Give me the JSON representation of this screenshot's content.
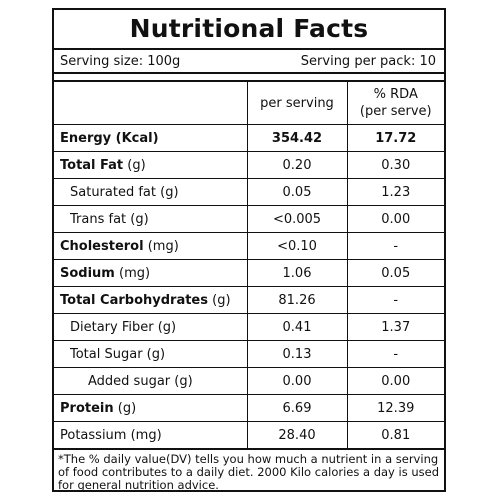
{
  "title": "Nutritional Facts",
  "serving": {
    "size_label": "Serving size: 100g",
    "per_pack_label": "Serving per pack: 10"
  },
  "headers": {
    "nutrient": "",
    "per_serving": "per serving",
    "rda_line1": "% RDA",
    "rda_line2": "(per serve)"
  },
  "rows": [
    {
      "name": "Energy (Kcal)",
      "per_serving": "354.42",
      "rda": "17.72"
    },
    {
      "name": "Total Fat",
      "unit": " (g)",
      "per_serving": "0.20",
      "rda": "0.30"
    },
    {
      "name": "Saturated fat (g)",
      "per_serving": "0.05",
      "rda": "1.23"
    },
    {
      "name": "Trans fat (g)",
      "per_serving": "<0.005",
      "rda": "0.00"
    },
    {
      "name": "Cholesterol",
      "unit": " (mg)",
      "per_serving": "<0.10",
      "rda": "-"
    },
    {
      "name": "Sodium",
      "unit": " (mg)",
      "per_serving": "1.06",
      "rda": "0.05"
    },
    {
      "name": "Total Carbohydrates",
      "unit": " (g)",
      "per_serving": "81.26",
      "rda": "-"
    },
    {
      "name": "Dietary Fiber (g)",
      "per_serving": "0.41",
      "rda": "1.37"
    },
    {
      "name": "Total Sugar (g)",
      "per_serving": "0.13",
      "rda": "-"
    },
    {
      "name": "Added sugar (g)",
      "per_serving": "0.00",
      "rda": "0.00"
    },
    {
      "name": "Protein",
      "unit": " (g)",
      "per_serving": "6.69",
      "rda": "12.39"
    },
    {
      "name": "Potassium (mg)",
      "per_serving": "28.40",
      "rda": "0.81"
    }
  ],
  "footnote": "*The % daily value(DV) tells you how much a nutrient in a serving of food contributes to a daily diet. 2000 Kilo calories a day is used for general nutrition advice."
}
